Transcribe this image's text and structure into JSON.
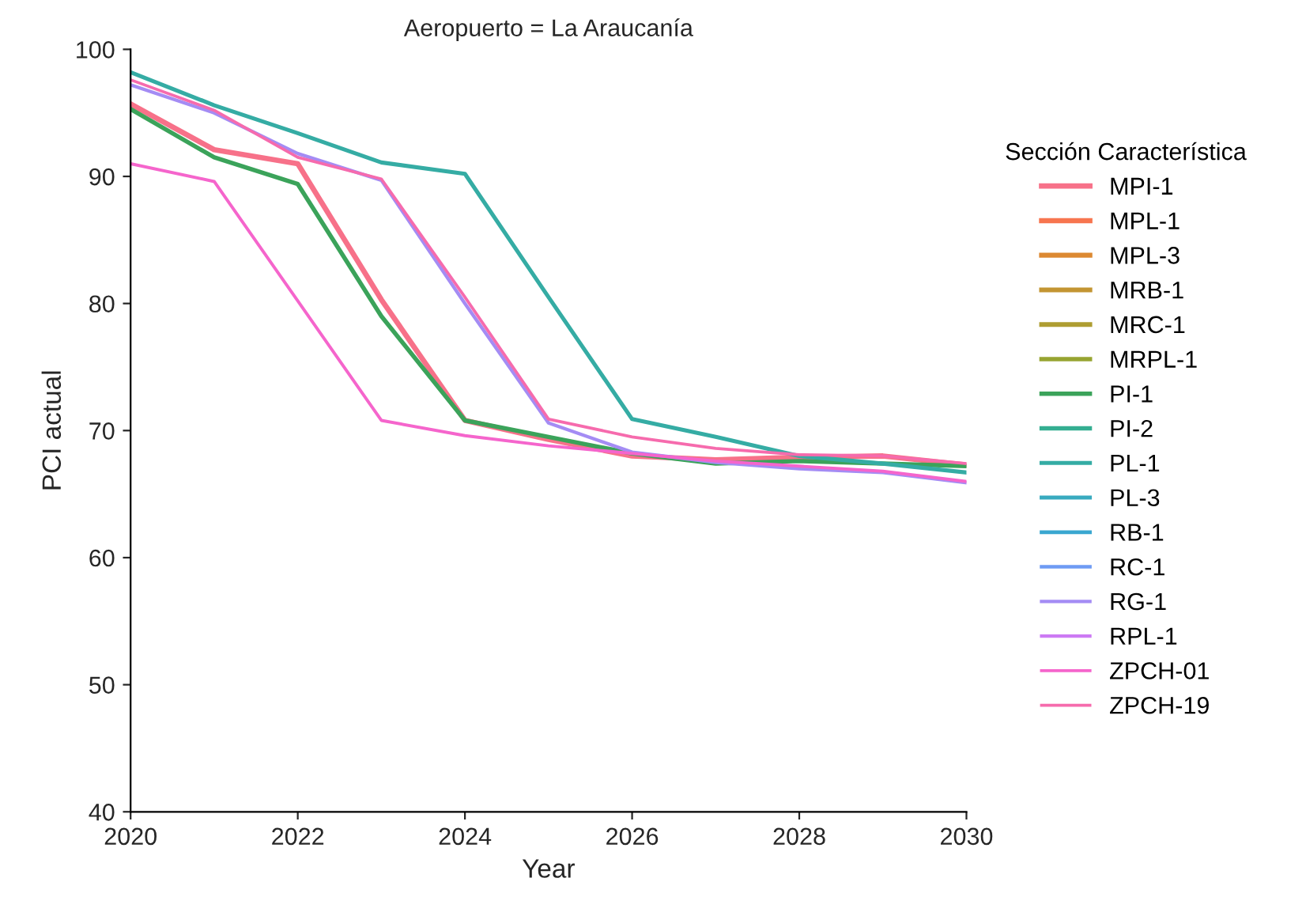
{
  "chart_data": {
    "type": "line",
    "title": "Aeropuerto = La Araucanía",
    "xlabel": "Year",
    "ylabel": "PCI actual",
    "legend_title": "Sección Característica",
    "x": [
      2020,
      2021,
      2022,
      2023,
      2024,
      2025,
      2026,
      2027,
      2028,
      2029,
      2030
    ],
    "xlim": [
      2020,
      2030
    ],
    "xticks": [
      2020,
      2022,
      2024,
      2026,
      2028,
      2030
    ],
    "ylim": [
      40,
      100
    ],
    "yticks": [
      40,
      50,
      60,
      70,
      80,
      90,
      100
    ],
    "grid": false,
    "legend": "right",
    "marker": "none",
    "line_style": "solid",
    "series": [
      {
        "name": "MPI-1",
        "color": "#f77189",
        "values": [
          95.7,
          92.1,
          91.0,
          80.3,
          70.8,
          69.3,
          68.0,
          67.7,
          67.9,
          68.0,
          67.3
        ]
      },
      {
        "name": "MPL-1",
        "color": "#f7754f",
        "values": [
          null,
          null,
          null,
          null,
          null,
          null,
          null,
          null,
          null,
          null,
          null
        ]
      },
      {
        "name": "MPL-3",
        "color": "#dc8932",
        "values": [
          null,
          null,
          null,
          null,
          null,
          null,
          null,
          null,
          null,
          null,
          null
        ]
      },
      {
        "name": "MRB-1",
        "color": "#c39532",
        "values": [
          null,
          null,
          null,
          null,
          null,
          null,
          null,
          null,
          null,
          null,
          null
        ]
      },
      {
        "name": "MRC-1",
        "color": "#ae9d31",
        "values": [
          null,
          null,
          null,
          null,
          null,
          null,
          null,
          null,
          null,
          null,
          null
        ]
      },
      {
        "name": "MRPL-1",
        "color": "#97a431",
        "values": [
          null,
          null,
          null,
          null,
          null,
          null,
          null,
          null,
          null,
          null,
          null
        ]
      },
      {
        "name": "PI-1",
        "color": "#3ba35a",
        "values": [
          95.3,
          91.5,
          89.4,
          79.0,
          70.8,
          69.5,
          68.2,
          67.4,
          67.6,
          67.4,
          67.2
        ]
      },
      {
        "name": "PI-2",
        "color": "#34ae91",
        "values": [
          null,
          null,
          null,
          null,
          null,
          null,
          null,
          null,
          null,
          null,
          null
        ]
      },
      {
        "name": "PL-1",
        "color": "#35aca4",
        "values": [
          98.2,
          95.6,
          93.4,
          91.1,
          90.2,
          80.5,
          70.9,
          69.5,
          68.0,
          67.4,
          66.7
        ]
      },
      {
        "name": "PL-3",
        "color": "#38aabf",
        "values": [
          null,
          null,
          null,
          null,
          null,
          null,
          null,
          null,
          null,
          null,
          null
        ]
      },
      {
        "name": "RB-1",
        "color": "#39a7d0",
        "values": [
          null,
          null,
          null,
          null,
          null,
          null,
          null,
          null,
          null,
          null,
          null
        ]
      },
      {
        "name": "RC-1",
        "color": "#6e9bf4",
        "values": [
          null,
          null,
          null,
          null,
          null,
          null,
          null,
          null,
          null,
          null,
          null
        ]
      },
      {
        "name": "RG-1",
        "color": "#a48cf4",
        "values": [
          97.2,
          95.0,
          91.8,
          89.7,
          80.0,
          70.6,
          68.3,
          67.5,
          67.0,
          66.7,
          65.9
        ]
      },
      {
        "name": "RPL-1",
        "color": "#cc7af4",
        "values": [
          null,
          null,
          null,
          null,
          null,
          null,
          null,
          null,
          null,
          null,
          null
        ]
      },
      {
        "name": "ZPCH-01",
        "color": "#f565cc",
        "values": [
          91.0,
          89.6,
          80.2,
          70.8,
          69.6,
          68.8,
          68.2,
          67.6,
          67.2,
          66.8,
          66.0
        ]
      },
      {
        "name": "ZPCH-19",
        "color": "#f66bad",
        "values": [
          97.6,
          95.2,
          91.5,
          89.8,
          80.5,
          70.9,
          69.5,
          68.6,
          68.1,
          68.0,
          67.4
        ]
      }
    ]
  }
}
